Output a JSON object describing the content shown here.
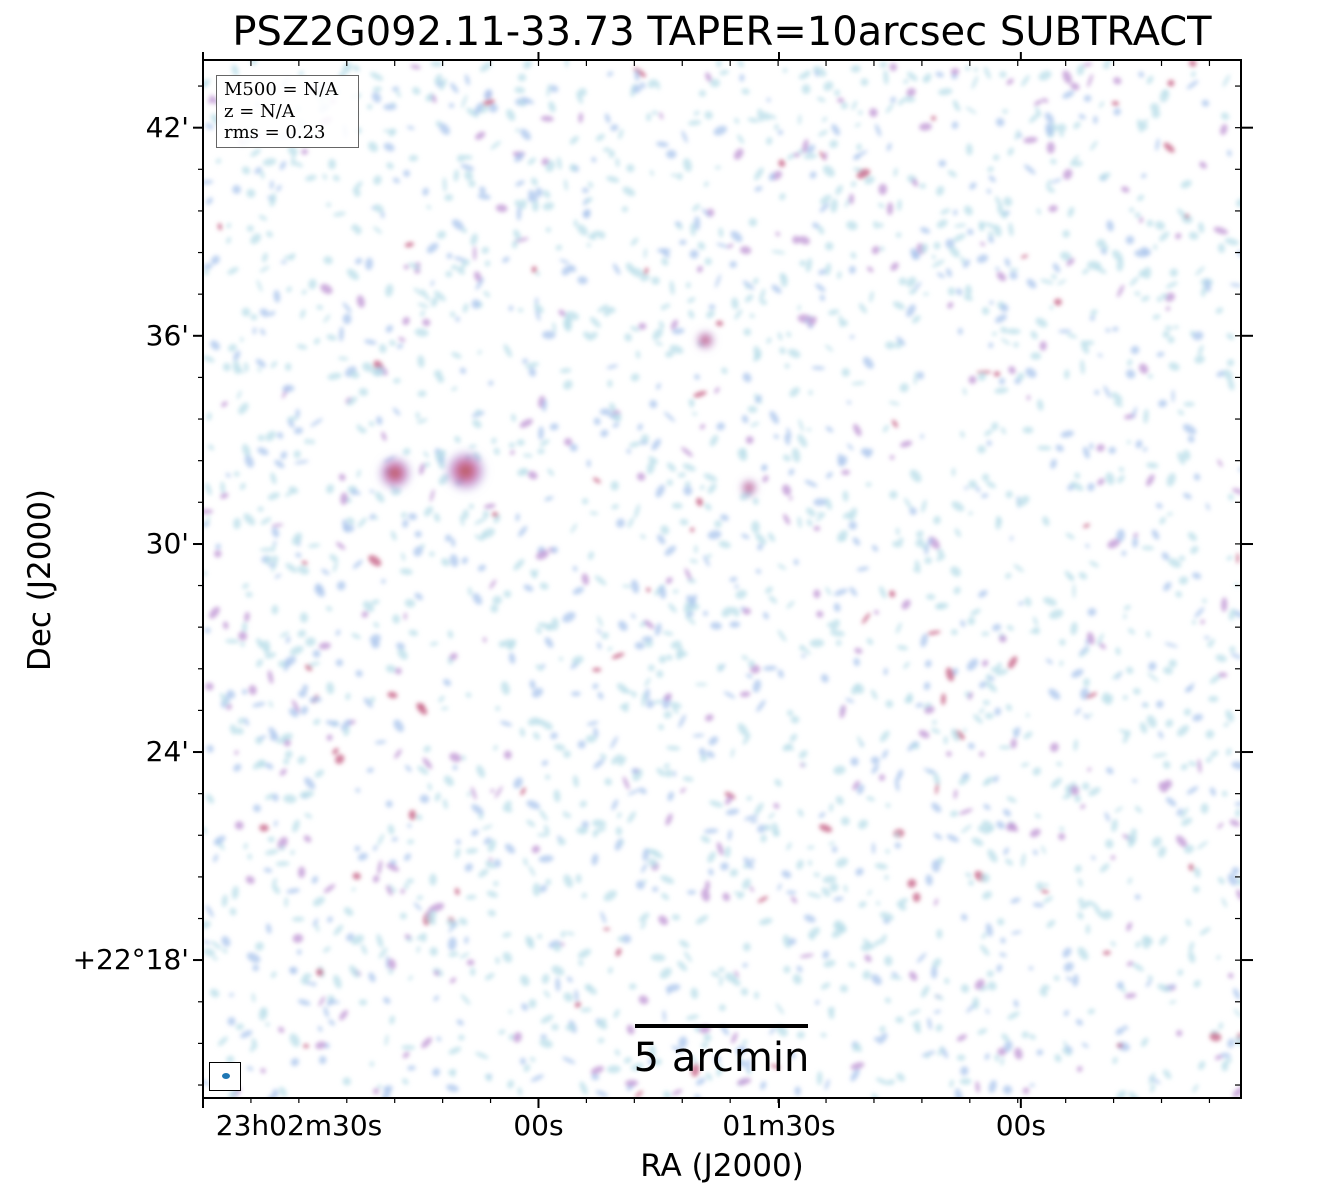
{
  "title": "PSZ2G092.11-33.73 TAPER=10arcsec SUBTRACT",
  "axes": {
    "xlabel": "RA (J2000)",
    "ylabel": "Dec (J2000)",
    "xticks": [
      {
        "label": "23h02m30s",
        "frac": 0.0
      },
      {
        "label": "00s",
        "frac": 0.3232
      },
      {
        "label": "01m30s",
        "frac": 0.5549
      },
      {
        "label": "00s",
        "frac": 0.7879
      }
    ],
    "yticks": [
      {
        "label": "42'",
        "frac": 0.0652
      },
      {
        "label": "36'",
        "frac": 0.2657
      },
      {
        "label": "30'",
        "frac": 0.4663
      },
      {
        "label": "24'",
        "frac": 0.6667
      },
      {
        "label": "+22°18'",
        "frac": 0.8671
      }
    ]
  },
  "info": {
    "m500": "M500 = N/A",
    "z": "z = N/A",
    "rms": "rms = 0.23"
  },
  "scalebar": {
    "label": "5 arcmin"
  },
  "colors": {
    "noise_light": "#b8dde8",
    "noise_mid": "#a9c4ec",
    "noise_strong": "#c29ad6",
    "source_peak": "#c0527a",
    "source_core": "#b0604a",
    "beam": "#1f77b4",
    "frame": "#000000"
  }
}
